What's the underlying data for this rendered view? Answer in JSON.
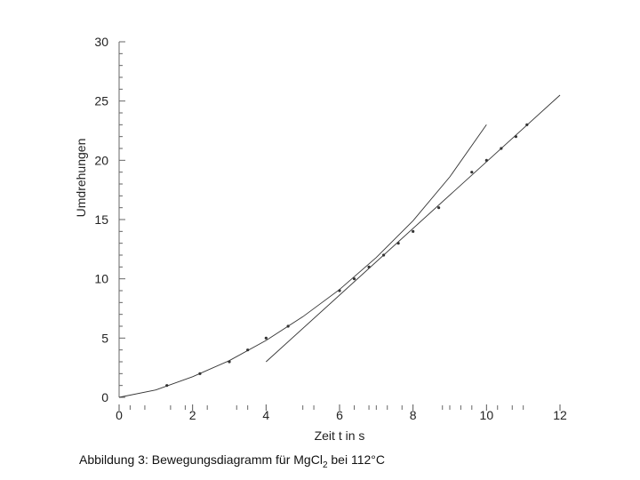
{
  "chart_data": {
    "type": "scatter",
    "title": "",
    "xlabel": "Zeit t in s",
    "ylabel": "Umdrehungen",
    "xlim": [
      0,
      12
    ],
    "ylim": [
      0,
      30
    ],
    "x_ticks": [
      "0",
      "2",
      "4",
      "6",
      "8",
      "10",
      "12"
    ],
    "y_ticks": [
      "0",
      "5",
      "10",
      "15",
      "20",
      "25",
      "30"
    ],
    "grid": false,
    "legend": "none",
    "series": [
      {
        "kind": "points",
        "values": [
          {
            "x": 1.3,
            "y": 1.0
          },
          {
            "x": 2.2,
            "y": 2.0
          },
          {
            "x": 3.0,
            "y": 3.0
          },
          {
            "x": 3.5,
            "y": 4.0
          },
          {
            "x": 4.0,
            "y": 5.0
          },
          {
            "x": 4.6,
            "y": 6.0
          },
          {
            "x": 6.0,
            "y": 9.0
          },
          {
            "x": 6.4,
            "y": 10.0
          },
          {
            "x": 6.8,
            "y": 11.0
          },
          {
            "x": 7.2,
            "y": 12.0
          },
          {
            "x": 7.6,
            "y": 13.0
          },
          {
            "x": 8.0,
            "y": 14.0
          },
          {
            "x": 8.7,
            "y": 16.0
          },
          {
            "x": 9.6,
            "y": 19.0
          },
          {
            "x": 10.0,
            "y": 20.0
          },
          {
            "x": 10.4,
            "y": 21.0
          },
          {
            "x": 10.8,
            "y": 22.0
          },
          {
            "x": 11.1,
            "y": 23.0
          }
        ]
      },
      {
        "kind": "curve",
        "values": [
          {
            "x": 0,
            "y": 0
          },
          {
            "x": 1,
            "y": 0.62
          },
          {
            "x": 2,
            "y": 1.74
          },
          {
            "x": 3,
            "y": 3.1
          },
          {
            "x": 4,
            "y": 4.8
          },
          {
            "x": 5,
            "y": 6.8
          },
          {
            "x": 6,
            "y": 9.1
          },
          {
            "x": 7,
            "y": 11.8
          },
          {
            "x": 8,
            "y": 14.9
          },
          {
            "x": 9,
            "y": 18.6
          },
          {
            "x": 10,
            "y": 23.0
          }
        ]
      },
      {
        "kind": "line",
        "values": [
          {
            "x": 4.0,
            "y": 3.0
          },
          {
            "x": 12.0,
            "y": 25.5
          }
        ]
      }
    ],
    "x_extra_ticks": [
      0.3,
      0.7,
      1.4,
      1.8,
      2.4,
      3.2,
      3.5,
      5.0,
      5.3,
      6.4,
      6.8,
      7.0,
      7.3,
      7.7,
      8.8,
      9.0,
      9.3,
      9.6,
      10.3,
      10.7,
      11.0
    ]
  },
  "caption": {
    "prefix": "Abbildung 3: Bewegungsdiagramm für MgCl",
    "subscript": "2",
    "suffix": " bei 112°C"
  }
}
